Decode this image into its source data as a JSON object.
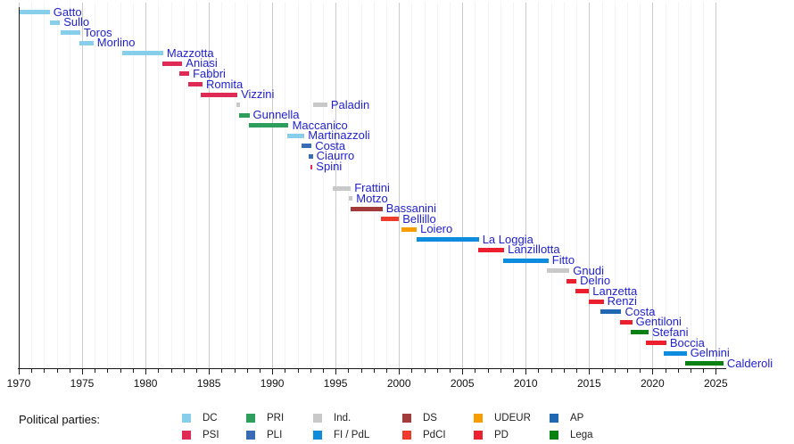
{
  "chart_data": {
    "type": "timeline",
    "description": "Gantt-style timeline of officeholders by political party, 1970-2025",
    "x_axis": {
      "min": 1970,
      "max": 2025.8,
      "major_tick_labels": [
        "1970",
        "1975",
        "1980",
        "1985",
        "1990",
        "1995",
        "2000",
        "2005",
        "2010",
        "2015",
        "2020",
        "2025"
      ],
      "minor_tick_interval": 1,
      "grid": true
    },
    "ministers": [
      {
        "name": "Gatto",
        "party": "DC",
        "terms": [
          [
            1970.1,
            1972.45
          ]
        ]
      },
      {
        "name": "Sullo",
        "party": "DC",
        "terms": [
          [
            1972.45,
            1973.25
          ]
        ]
      },
      {
        "name": "Toros",
        "party": "DC",
        "terms": [
          [
            1973.3,
            1974.85
          ]
        ]
      },
      {
        "name": "Morlino",
        "party": "DC",
        "terms": [
          [
            1974.75,
            1975.9
          ]
        ]
      },
      {
        "name": "Mazzotta",
        "party": "DC",
        "terms": [
          [
            1978.15,
            1981.4
          ]
        ]
      },
      {
        "name": "Aniasi",
        "party": "PSI",
        "terms": [
          [
            1981.3,
            1982.9
          ]
        ]
      },
      {
        "name": "Fabbri",
        "party": "PSI",
        "terms": [
          [
            1982.65,
            1983.45
          ]
        ]
      },
      {
        "name": "Romita",
        "party": "PSI",
        "terms": [
          [
            1983.4,
            1984.5
          ]
        ]
      },
      {
        "name": "Vizzini",
        "party": "PSI",
        "terms": [
          [
            1984.35,
            1987.25
          ]
        ]
      },
      {
        "name": "Paladin",
        "party": "Ind.",
        "terms": [
          [
            1987.2,
            1987.45
          ],
          [
            1993.2,
            1994.35
          ]
        ]
      },
      {
        "name": "Gunnella",
        "party": "PRI",
        "terms": [
          [
            1987.4,
            1988.2
          ]
        ]
      },
      {
        "name": "Maccanico",
        "party": "PRI",
        "terms": [
          [
            1988.15,
            1991.3
          ]
        ]
      },
      {
        "name": "Martinazzoli",
        "party": "DC",
        "terms": [
          [
            1991.15,
            1992.55
          ]
        ]
      },
      {
        "name": "Costa",
        "party": "PLI",
        "terms": [
          [
            1992.3,
            1993.1
          ]
        ]
      },
      {
        "name": "Ciaurro",
        "party": "PLI",
        "terms": [
          [
            1992.9,
            1993.2
          ]
        ]
      },
      {
        "name": "Spini",
        "party": "PSI",
        "terms": [
          [
            1993.0,
            1993.18
          ]
        ]
      },
      {
        "name": "Frattini",
        "party": "Ind.",
        "terms": [
          [
            1994.8,
            1996.2
          ]
        ]
      },
      {
        "name": "Motzo",
        "party": "Ind.",
        "terms": [
          [
            1996.05,
            1996.35
          ]
        ]
      },
      {
        "name": "Bassanini",
        "party": "DS",
        "terms": [
          [
            1996.2,
            1998.7
          ]
        ]
      },
      {
        "name": "Bellillo",
        "party": "PdCI",
        "terms": [
          [
            1998.6,
            2000.0
          ]
        ]
      },
      {
        "name": "Loiero",
        "party": "UDEUR",
        "terms": [
          [
            2000.2,
            2001.4
          ]
        ]
      },
      {
        "name": "La Loggia",
        "party": "FI / PdL",
        "terms": [
          [
            2001.4,
            2006.3
          ]
        ]
      },
      {
        "name": "Lanzillotta",
        "party": "PD",
        "terms": [
          [
            2006.25,
            2008.3
          ]
        ]
      },
      {
        "name": "Fitto",
        "party": "FI / PdL",
        "terms": [
          [
            2008.2,
            2011.8
          ]
        ]
      },
      {
        "name": "Gnudi",
        "party": "Ind.",
        "terms": [
          [
            2011.7,
            2013.45
          ]
        ]
      },
      {
        "name": "Delrio",
        "party": "PD",
        "terms": [
          [
            2013.2,
            2014.0
          ]
        ]
      },
      {
        "name": "Lanzetta",
        "party": "PD",
        "terms": [
          [
            2013.9,
            2015.0
          ]
        ]
      },
      {
        "name": "Renzi",
        "party": "PD",
        "terms": [
          [
            2015.0,
            2016.15
          ]
        ]
      },
      {
        "name": "Costa",
        "party": "AP",
        "terms": [
          [
            2015.9,
            2017.55
          ]
        ]
      },
      {
        "name": "Gentiloni",
        "party": "PD",
        "terms": [
          [
            2017.45,
            2018.4
          ]
        ]
      },
      {
        "name": "Stefani",
        "party": "Lega",
        "terms": [
          [
            2018.3,
            2019.7
          ]
        ]
      },
      {
        "name": "Boccia",
        "party": "PD",
        "terms": [
          [
            2019.5,
            2021.1
          ]
        ]
      },
      {
        "name": "Gelmini",
        "party": "FI / PdL",
        "terms": [
          [
            2020.9,
            2022.7
          ]
        ]
      },
      {
        "name": "Calderoli",
        "party": "Lega",
        "terms": [
          [
            2022.6,
            2025.6
          ]
        ]
      }
    ],
    "party_colors": {
      "DC": "#87CEEB",
      "PSI": "#DF2A56",
      "PRI": "#2E9E5C",
      "PLI": "#3A6CB5",
      "Ind.": "#C9C9C9",
      "FI / PdL": "#0E8CDE",
      "DS": "#A33B3B",
      "PdCI": "#EE3B2A",
      "UDEUR": "#F79D00",
      "PD": "#EC1F2F",
      "AP": "#2068B2",
      "Lega": "#0A8112"
    },
    "legend": {
      "title": "Political parties:",
      "position": "bottom",
      "rows": [
        [
          "DC",
          "PRI",
          "Ind.",
          "DS",
          "UDEUR",
          "AP"
        ],
        [
          "PSI",
          "PLI",
          "FI / PdL",
          "PdCI",
          "PD",
          "Lega"
        ]
      ]
    },
    "label_color": "#2222CC"
  }
}
